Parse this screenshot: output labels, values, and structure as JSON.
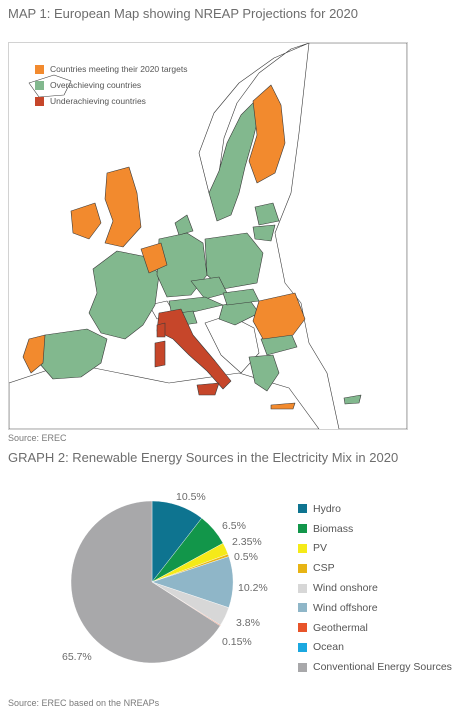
{
  "map": {
    "title": "MAP 1: European Map showing NREAP Projections for 2020",
    "source": "Source: EREC",
    "legend": [
      {
        "label": "Countries meeting their 2020 targets",
        "color": "#f28a2e"
      },
      {
        "label": "Overachieving countries",
        "color": "#82b88e"
      },
      {
        "label": "Underachieving countries",
        "color": "#c6462a"
      }
    ]
  },
  "graph": {
    "title": "GRAPH 2: Renewable Energy Sources in the Electricity Mix in 2020",
    "source": "Source: EREC based on the NREAPs"
  },
  "chart_data": {
    "type": "pie",
    "title": "GRAPH 2: Renewable Energy Sources in the Electricity Mix in 2020",
    "unit": "%",
    "slices": [
      {
        "label": "Hydro",
        "value": 10.5,
        "value_label": "10.5%",
        "color": "#0e7490"
      },
      {
        "label": "Biomass",
        "value": 6.5,
        "value_label": "6.5%",
        "color": "#12964a"
      },
      {
        "label": "PV",
        "value": 2.35,
        "value_label": "2.35%",
        "color": "#f5ea18"
      },
      {
        "label": "CSP",
        "value": 0.5,
        "value_label": "0.5%",
        "color": "#e7b414"
      },
      {
        "label": "Wind offshore",
        "value": 10.2,
        "value_label": "10.2%",
        "color": "#8fb6c8"
      },
      {
        "label": "Wind onshore",
        "value": 3.8,
        "value_label": "3.8%",
        "color": "#d7d7d7"
      },
      {
        "label": "Geothermal",
        "value": 0.15,
        "value_label": "0.15%",
        "color": "#e8542a"
      },
      {
        "label": "Ocean",
        "value": 0.0,
        "value_label": "",
        "color": "#1ba8e0"
      },
      {
        "label": "Conventional Energy Sources",
        "value": 65.7,
        "value_label": "65.7%",
        "color": "#a8a8aa"
      }
    ],
    "legend": [
      {
        "label": "Hydro",
        "color": "#0e7490"
      },
      {
        "label": "Biomass",
        "color": "#12964a"
      },
      {
        "label": "PV",
        "color": "#f5ea18"
      },
      {
        "label": "CSP",
        "color": "#e7b414"
      },
      {
        "label": "Wind onshore",
        "color": "#d7d7d7"
      },
      {
        "label": "Wind offshore",
        "color": "#8fb6c8"
      },
      {
        "label": "Geothermal",
        "color": "#e8542a"
      },
      {
        "label": "Ocean",
        "color": "#1ba8e0"
      },
      {
        "label": "Conventional Energy Sources",
        "color": "#a8a8aa"
      }
    ],
    "legend_position": "right"
  }
}
